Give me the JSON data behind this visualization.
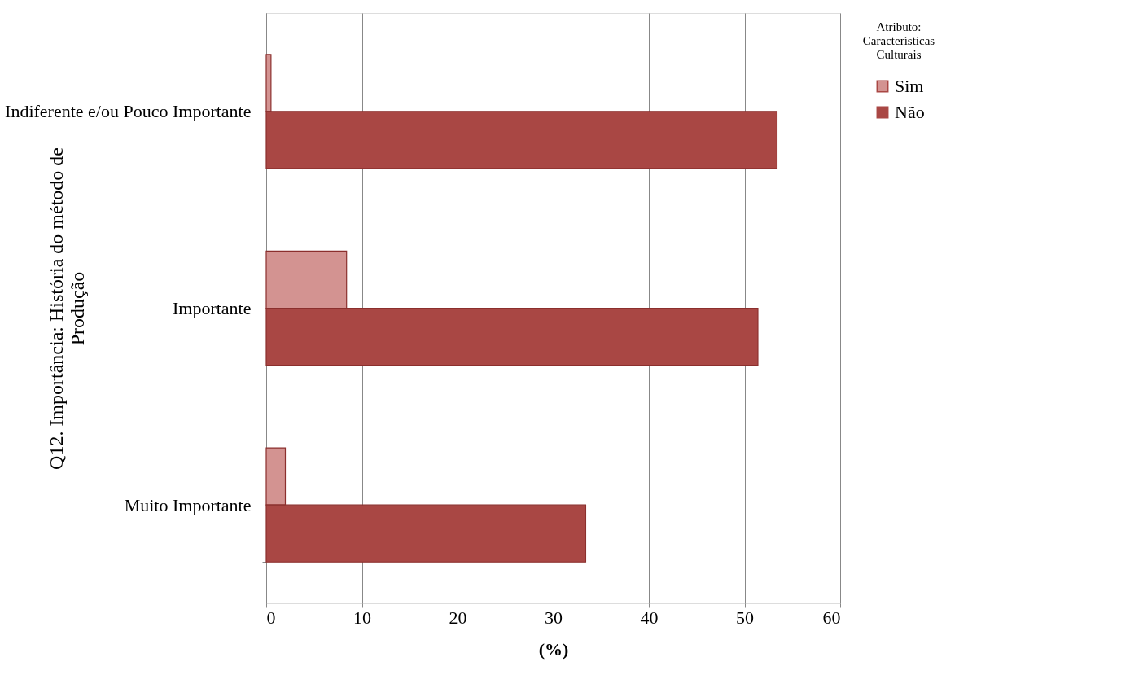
{
  "chart_data": {
    "type": "bar",
    "orientation": "horizontal",
    "ylabel": "Q12. Importância: História do método de Produção",
    "xlabel": "(%)",
    "legend_title": "Atributo: Características Culturais",
    "categories": [
      "Indiferente e/ou Pouco Importante",
      "Importante",
      "Muito Importante"
    ],
    "series": [
      {
        "name": "Sim",
        "color": "#d39391",
        "values": [
          0.5,
          8.4,
          2.0
        ]
      },
      {
        "name": "Não",
        "color": "#a94744",
        "values": [
          53.4,
          51.4,
          33.4
        ]
      }
    ],
    "xlim": [
      0,
      60
    ],
    "xticks": [
      0,
      10,
      20,
      30,
      40,
      50,
      60
    ],
    "grid": "x",
    "legend": "right"
  }
}
